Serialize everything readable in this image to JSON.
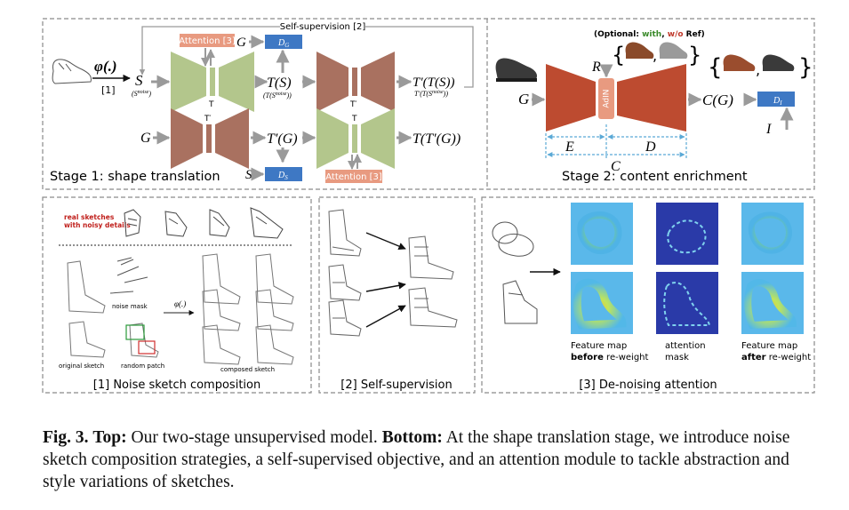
{
  "stage1": {
    "caption": "Stage 1: shape translation",
    "self_supervision": "Self-supervision [2]",
    "phi": "φ(.)",
    "phi_ref": "[1]",
    "S": "S",
    "S_noise": "(S",
    "S_noise_sup": "noise",
    "S_noise_close": ")",
    "G_top": "G",
    "D_G": "D",
    "D_G_sub": "G",
    "attention_top": "Attention [3]",
    "T_small": "T",
    "T_prime_small": "T′",
    "TS": "T(S)",
    "TS_noise": "(T(S",
    "TS_noise_sup": "noise",
    "TS_noise_close": "))",
    "TpTS": "T′(T(S))",
    "TpTS_noise": "T′(T(S",
    "TpTS_noise_sup": "noise",
    "TpTS_noise_close": "))",
    "G_bottom": "G",
    "TpG": "T′(G)",
    "TTpG": "T(T′(G))",
    "S_bottom": "S",
    "D_S": "D",
    "D_S_sub": "S",
    "attention_bottom": "Attention [3]"
  },
  "stage2": {
    "caption": "Stage 2: content enrichment",
    "optional_prefix": "(Optional: ",
    "optional_with": "with",
    "optional_sep": ", ",
    "optional_without": "w/o",
    "optional_suffix": " Ref)",
    "R": "R",
    "G": "G",
    "adain": "AdIN",
    "CG": "C(G)",
    "E": "E",
    "D": "D",
    "C": "C",
    "I": "I",
    "D_I": "D",
    "D_I_sub": "I"
  },
  "panel1": {
    "caption": "[1] Noise sketch composition",
    "real_sketches_line1": "real sketches",
    "real_sketches_line2": "with noisy details",
    "noise_mask": "noise mask",
    "phi": "φ(.)",
    "original_sketch": "original sketch",
    "random_patch": "random patch",
    "composed_sketch": "composed sketch"
  },
  "panel2": {
    "caption": "[2] Self-supervision"
  },
  "panel3": {
    "caption": "[3] De-noising attention",
    "col1_line1": "Feature map",
    "col1_bold": "before",
    "col1_rest": " re-weight",
    "col2_line1": "attention",
    "col2_line2": "mask",
    "col3_line1": "Feature map",
    "col3_bold": "after",
    "col3_rest": " re-weight"
  },
  "figure_caption": {
    "label": "Fig. 3.",
    "top_label": "Top:",
    "top_text": " Our two-stage unsupervised model. ",
    "bottom_label": "Bottom:",
    "bottom_text": " At the shape translation stage, we introduce noise sketch composition strategies, a self-supervised objective, and an attention module to tackle abstraction and style variations of sketches."
  },
  "colors": {
    "generator_green": "#b3c68c",
    "generator_brown": "#a97160",
    "stage2_red": "#bd4b30",
    "attention_salmon": "#e89a80",
    "discriminator_blue": "#3e78c4",
    "with_green": "#3a8a2a",
    "without_red": "#c0392b",
    "real_sketch_red": "#c0201c",
    "dashed_border": "#8a8a8a",
    "arrow_gray": "#9a9a9a"
  }
}
